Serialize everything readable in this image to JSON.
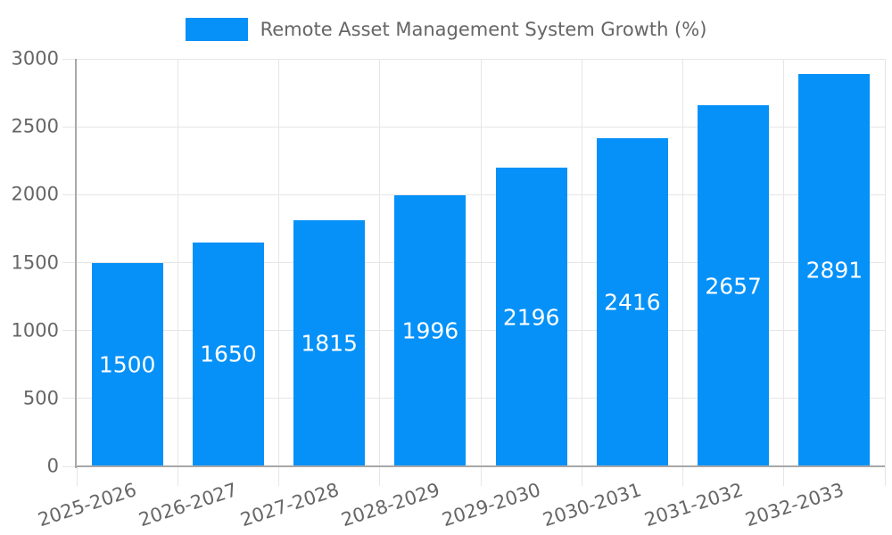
{
  "legend": {
    "label": "Remote Asset Management System Growth (%)"
  },
  "colors": {
    "bar": "#0591f8",
    "grid": "#e6e6e6",
    "axis": "#a8a8a8",
    "tick_text": "#666666",
    "bar_label_text": "#ffffff",
    "background": "#ffffff"
  },
  "chart_data": {
    "type": "bar",
    "title": "Remote Asset Management System Growth (%)",
    "categories": [
      "2025-2026",
      "2026-2027",
      "2027-2028",
      "2028-2029",
      "2029-2030",
      "2030-2031",
      "2031-2032",
      "2032-2033"
    ],
    "values": [
      1500,
      1650,
      1815,
      1996,
      2196,
      2416,
      2657,
      2891
    ],
    "bar_value_labels": [
      "1500",
      "1650",
      "1815",
      "1996",
      "2196",
      "2416",
      "2657",
      "2891"
    ],
    "xlabel": "",
    "ylabel": "",
    "ylim": [
      0,
      3000
    ],
    "yticks": [
      0,
      500,
      1000,
      1500,
      2000,
      2500,
      3000
    ],
    "legend_position": "top",
    "grid": true,
    "value_label_position": "inside-center",
    "x_tick_rotation_deg": -18
  }
}
